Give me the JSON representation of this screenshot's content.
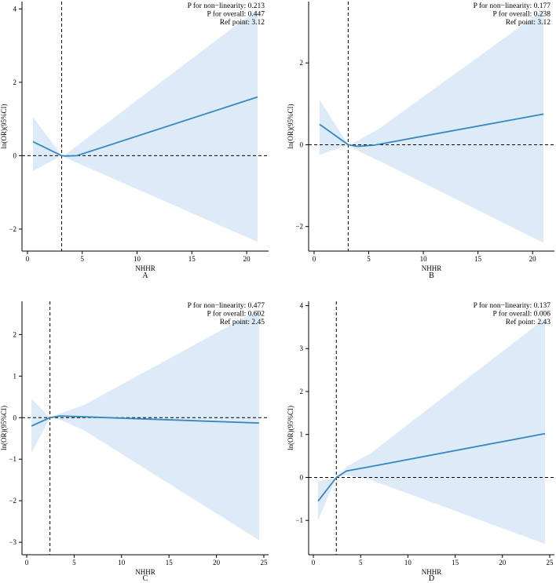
{
  "figure": {
    "band_color": "#dcebf7",
    "line_color": "#3a86be",
    "ref_line_color": "#000000"
  },
  "chart_data": [
    {
      "type": "line",
      "panel_label": "A",
      "xlabel": "NHHR",
      "ylabel": "ln(OR)(95%CI)",
      "xlim": [
        -0.5,
        22
      ],
      "ylim": [
        -2.6,
        4.2
      ],
      "xticks": [
        0,
        5,
        10,
        15,
        20
      ],
      "yticks": [
        -2,
        0,
        2,
        4
      ],
      "ref_x": 3.12,
      "ref_y": 0,
      "stats": [
        "P for non−linearity: 0.213",
        "P for overall: 0.447",
        "Ref point: 3.12"
      ],
      "series": [
        {
          "name": "ln(OR)",
          "x": [
            0.5,
            3.12,
            3.5,
            4.5,
            21
          ],
          "y": [
            0.38,
            0.0,
            -0.01,
            0.0,
            1.6
          ]
        },
        {
          "name": "95%CI upper",
          "x": [
            0.5,
            3.12,
            3.5,
            21
          ],
          "y": [
            1.05,
            0.0,
            0.04,
            4.0
          ]
        },
        {
          "name": "95%CI lower",
          "x": [
            0.5,
            3.12,
            3.5,
            21
          ],
          "y": [
            -0.42,
            0.0,
            -0.06,
            -2.35
          ]
        }
      ]
    },
    {
      "type": "line",
      "panel_label": "B",
      "xlabel": "NHHR",
      "ylabel": "ln(OR)(95%CI)",
      "xlim": [
        -0.5,
        22
      ],
      "ylim": [
        -2.6,
        3.5
      ],
      "xticks": [
        0,
        5,
        10,
        15,
        20
      ],
      "yticks": [
        -2,
        0,
        2
      ],
      "ref_x": 3.12,
      "ref_y": 0,
      "stats": [
        "P for non−linearity: 0.177",
        "P for overall: 0.238",
        "Ref point: 3.12"
      ],
      "series": [
        {
          "name": "ln(OR)",
          "x": [
            0.5,
            3.12,
            4,
            5.5,
            21
          ],
          "y": [
            0.5,
            0.0,
            -0.04,
            -0.01,
            0.75
          ]
        },
        {
          "name": "95%CI upper",
          "x": [
            0.5,
            3.12,
            4,
            6,
            21
          ],
          "y": [
            1.1,
            0.0,
            0.1,
            0.4,
            3.3
          ]
        },
        {
          "name": "95%CI lower",
          "x": [
            0.5,
            3.12,
            4,
            6,
            21
          ],
          "y": [
            -0.25,
            0.0,
            -0.15,
            -0.4,
            -2.4
          ]
        }
      ]
    },
    {
      "type": "line",
      "panel_label": "C",
      "xlabel": "NHHR",
      "ylabel": "ln(OR)(95%CI)",
      "xlim": [
        -0.5,
        25.5
      ],
      "ylim": [
        -3.3,
        2.8
      ],
      "xticks": [
        0,
        5,
        10,
        15,
        20,
        25
      ],
      "yticks": [
        -3,
        -2,
        -1,
        0,
        1,
        2
      ],
      "ref_x": 2.45,
      "ref_y": 0,
      "stats": [
        "P for non−linearity: 0.477",
        "P for overall: 0.602",
        "Ref point: 2.45"
      ],
      "series": [
        {
          "name": "ln(OR)",
          "x": [
            0.5,
            2.45,
            3.5,
            6,
            24.5
          ],
          "y": [
            -0.2,
            0.0,
            0.04,
            0.02,
            -0.13
          ]
        },
        {
          "name": "95%CI upper",
          "x": [
            0.5,
            2.45,
            3.5,
            6,
            24.5
          ],
          "y": [
            0.45,
            0.0,
            0.1,
            0.3,
            2.6
          ]
        },
        {
          "name": "95%CI lower",
          "x": [
            0.5,
            2.45,
            3.5,
            6,
            24.5
          ],
          "y": [
            -0.85,
            0.0,
            -0.05,
            -0.3,
            -2.95
          ]
        }
      ]
    },
    {
      "type": "line",
      "panel_label": "D",
      "xlabel": "NHHR",
      "ylabel": "ln(OR)(95%CI)",
      "xlim": [
        -0.5,
        25.5
      ],
      "ylim": [
        -1.8,
        4.1
      ],
      "xticks": [
        0,
        5,
        10,
        15,
        20,
        25
      ],
      "yticks": [
        -1,
        0,
        1,
        2,
        3,
        4
      ],
      "ref_x": 2.43,
      "ref_y": 0,
      "stats": [
        "P for non−linearity: 0.137",
        "P for overall: 0.006",
        "Ref point: 2.43"
      ],
      "series": [
        {
          "name": "ln(OR)",
          "x": [
            0.5,
            2.43,
            3.5,
            6,
            24.5
          ],
          "y": [
            -0.55,
            0.0,
            0.15,
            0.25,
            1.02
          ]
        },
        {
          "name": "95%CI upper",
          "x": [
            0.5,
            2.43,
            3.5,
            6,
            24.5
          ],
          "y": [
            -0.1,
            0.0,
            0.25,
            0.55,
            3.7
          ]
        },
        {
          "name": "95%CI lower",
          "x": [
            0.5,
            2.43,
            3.5,
            6,
            24.5
          ],
          "y": [
            -1.0,
            0.0,
            0.05,
            -0.05,
            -1.55
          ]
        }
      ]
    }
  ]
}
